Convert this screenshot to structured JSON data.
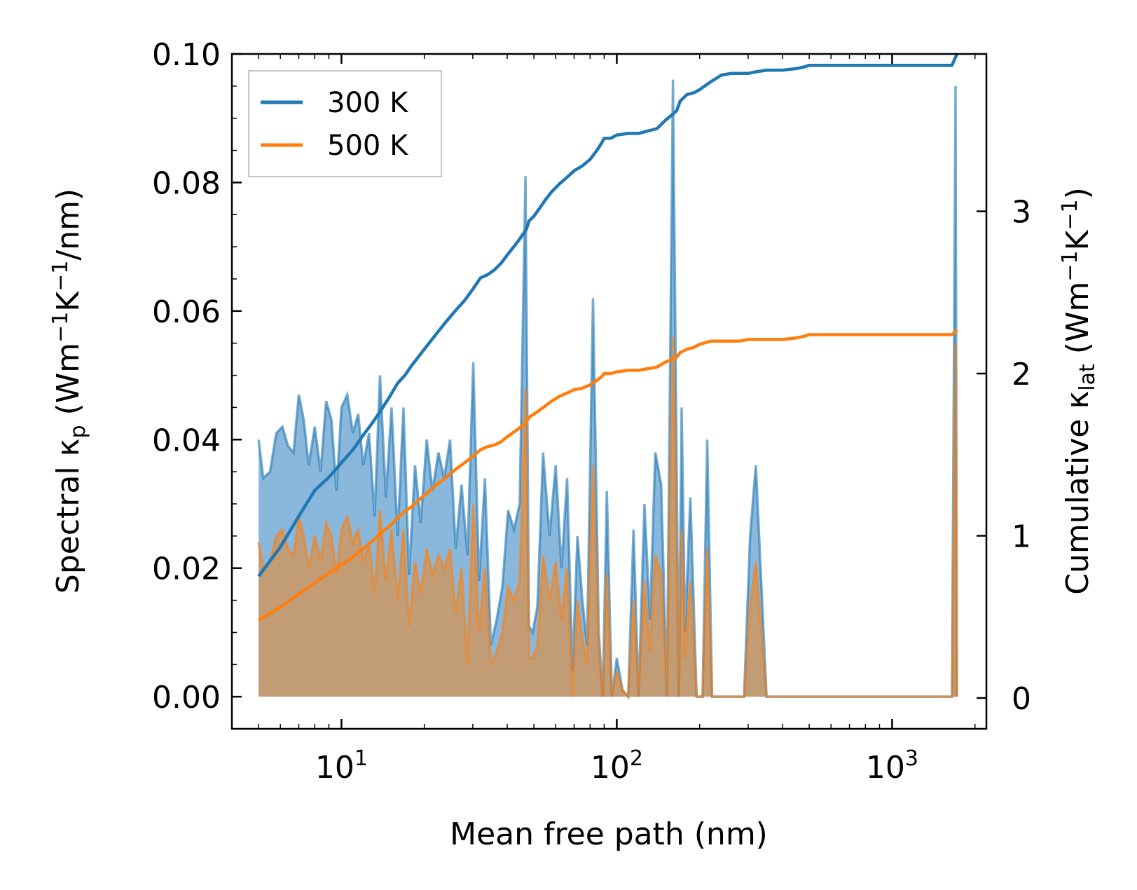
{
  "chart_data": {
    "type": "line",
    "xlabel": "Mean free path (nm)",
    "x_scale": "log",
    "xlim": [
      4.0,
      2200
    ],
    "x_tick_base": "10",
    "x_ticks": [
      {
        "value": 10,
        "exp": "1"
      },
      {
        "value": 100,
        "exp": "2"
      },
      {
        "value": 1000,
        "exp": "3"
      }
    ],
    "left_axis": {
      "label_prefix": "Spectral κ",
      "label_sub": "p",
      "label_unit_open": " (Wm",
      "label_sup1": "−1",
      "label_mid": "K",
      "label_sup2": "−1",
      "label_close": "/nm)",
      "ylim": [
        -0.005,
        0.1
      ],
      "ticks": [
        0.0,
        0.02,
        0.04,
        0.06,
        0.08,
        0.1
      ],
      "tick_labels": [
        "0.00",
        "0.02",
        "0.04",
        "0.06",
        "0.08",
        "0.10"
      ]
    },
    "right_axis": {
      "label_prefix": "Cumulative κ",
      "label_sub": "lat",
      "label_unit_open": " (Wm",
      "label_sup1": "−1",
      "label_mid": "K",
      "label_sup2": "−1",
      "label_close": ")",
      "ylim": [
        -0.19,
        3.97
      ],
      "ticks": [
        0,
        1,
        2,
        3
      ],
      "tick_labels": [
        "0",
        "1",
        "2",
        "3"
      ]
    },
    "legend": {
      "placement": "top-left",
      "entries": [
        "300 K",
        "500 K"
      ]
    },
    "series": [
      {
        "name": "300 K",
        "color": "#1f77b4",
        "fill_color": "#8ab8dc",
        "spectral_x": [
          5,
          5.2,
          5.5,
          5.8,
          6.1,
          6.4,
          6.7,
          7.0,
          7.3,
          7.6,
          8.0,
          8.4,
          8.8,
          9.2,
          9.6,
          10.0,
          10.5,
          11.0,
          11.5,
          12.0,
          12.6,
          13.2,
          13.8,
          14.5,
          15.2,
          16.0,
          16.8,
          17.6,
          18.5,
          19.4,
          20.4,
          21.4,
          22.5,
          23.6,
          24.8,
          26.0,
          27.3,
          28.7,
          30.1,
          31.6,
          33.2,
          34.9,
          36.6,
          38.4,
          40.3,
          42.3,
          44.4,
          46.6,
          48.0,
          49.5,
          51.5,
          54.0,
          57.0,
          60.0,
          63.0,
          66.0,
          69.0,
          72.0,
          75.0,
          78.0,
          82.0,
          86.0,
          89.0,
          92.0,
          96.0,
          100,
          105,
          110,
          115,
          120,
          126,
          132,
          138,
          145,
          152,
          160,
          168,
          172,
          177,
          185,
          195,
          205,
          213,
          222,
          235,
          260,
          290,
          305,
          320,
          350,
          400,
          440,
          460,
          480,
          500,
          600,
          800,
          1000,
          1300,
          1650,
          1700,
          1720
        ],
        "spectral_y": [
          0.04,
          0.034,
          0.035,
          0.041,
          0.042,
          0.039,
          0.038,
          0.047,
          0.043,
          0.036,
          0.042,
          0.035,
          0.046,
          0.043,
          0.032,
          0.045,
          0.047,
          0.041,
          0.044,
          0.036,
          0.041,
          0.028,
          0.05,
          0.031,
          0.045,
          0.025,
          0.045,
          0.019,
          0.036,
          0.027,
          0.04,
          0.032,
          0.038,
          0.034,
          0.04,
          0.023,
          0.033,
          0.022,
          0.052,
          0.018,
          0.034,
          0.008,
          0.012,
          0.017,
          0.029,
          0.026,
          0.03,
          0.081,
          0.011,
          0.01,
          0.014,
          0.038,
          0.025,
          0.036,
          0.02,
          0.034,
          0.004,
          0.025,
          0.015,
          0.008,
          0.062,
          0.01,
          0.0,
          0.032,
          0.0,
          0.006,
          0.001,
          0.0,
          0.026,
          0.0,
          0.03,
          0.012,
          0.038,
          0.033,
          0.0,
          0.096,
          0.0,
          0.045,
          0.01,
          0.031,
          0.0,
          0.0,
          0.04,
          0.0,
          0.0,
          0.0,
          0.0,
          0.025,
          0.036,
          0.0,
          0.0,
          0.0,
          0.0,
          0.0,
          0.0,
          0.0,
          0.0,
          0.0,
          0.0,
          0.0,
          0.095,
          0.0
        ],
        "cumulative_x": [
          5,
          6,
          7,
          8,
          9,
          10,
          11,
          12,
          13,
          14,
          15,
          16,
          17,
          18,
          20,
          22,
          24,
          26,
          28,
          30,
          32,
          34,
          36,
          38,
          40,
          44,
          47,
          48,
          50,
          52,
          55,
          58,
          62,
          66,
          70,
          75,
          80,
          85,
          88,
          90,
          95,
          100,
          110,
          120,
          140,
          150,
          160,
          165,
          170,
          175,
          180,
          190,
          200,
          220,
          240,
          260,
          280,
          300,
          320,
          350,
          400,
          450,
          480,
          500,
          600,
          800,
          1000,
          1300,
          1650,
          1700,
          1720
        ],
        "cumulative_y": [
          0.75,
          0.93,
          1.12,
          1.28,
          1.36,
          1.45,
          1.53,
          1.62,
          1.7,
          1.78,
          1.86,
          1.94,
          1.99,
          2.05,
          2.15,
          2.24,
          2.32,
          2.39,
          2.45,
          2.52,
          2.59,
          2.61,
          2.64,
          2.68,
          2.73,
          2.82,
          2.89,
          2.94,
          2.97,
          3.01,
          3.07,
          3.12,
          3.17,
          3.21,
          3.25,
          3.28,
          3.32,
          3.38,
          3.42,
          3.45,
          3.45,
          3.47,
          3.48,
          3.48,
          3.51,
          3.56,
          3.6,
          3.62,
          3.68,
          3.7,
          3.72,
          3.73,
          3.75,
          3.8,
          3.84,
          3.85,
          3.85,
          3.85,
          3.86,
          3.87,
          3.87,
          3.88,
          3.89,
          3.9,
          3.9,
          3.9,
          3.9,
          3.9,
          3.9,
          3.95,
          3.97
        ]
      },
      {
        "name": "500 K",
        "color": "#ff7f0e",
        "fill_color": "#c7996b",
        "spectral_x": [
          5,
          5.2,
          5.5,
          5.8,
          6.1,
          6.4,
          6.7,
          7.0,
          7.3,
          7.6,
          8.0,
          8.4,
          8.8,
          9.2,
          9.6,
          10.0,
          10.5,
          11.0,
          11.5,
          12.0,
          12.6,
          13.2,
          13.8,
          14.5,
          15.2,
          16.0,
          16.8,
          17.6,
          18.5,
          19.4,
          20.4,
          21.4,
          22.5,
          23.6,
          24.8,
          26.0,
          27.3,
          28.7,
          30.1,
          31.6,
          33.2,
          34.9,
          36.6,
          38.4,
          40.3,
          42.3,
          44.4,
          46.6,
          48.0,
          49.5,
          51.5,
          54.0,
          57.0,
          60.0,
          63.0,
          66.0,
          69.0,
          72.0,
          75.0,
          78.0,
          82.0,
          86.0,
          89.0,
          92.0,
          96.0,
          100,
          105,
          110,
          115,
          120,
          126,
          132,
          138,
          145,
          152,
          160,
          168,
          172,
          177,
          185,
          195,
          205,
          213,
          222,
          235,
          260,
          290,
          305,
          320,
          350,
          400,
          440,
          460,
          480,
          500,
          600,
          800,
          1000,
          1300,
          1650,
          1700,
          1720
        ],
        "spectral_y": [
          0.024,
          0.02,
          0.021,
          0.025,
          0.026,
          0.023,
          0.022,
          0.028,
          0.025,
          0.02,
          0.025,
          0.021,
          0.027,
          0.025,
          0.019,
          0.026,
          0.028,
          0.024,
          0.026,
          0.021,
          0.024,
          0.016,
          0.029,
          0.018,
          0.026,
          0.015,
          0.026,
          0.011,
          0.021,
          0.016,
          0.023,
          0.019,
          0.022,
          0.02,
          0.023,
          0.013,
          0.02,
          0.005,
          0.03,
          0.01,
          0.02,
          0.005,
          0.007,
          0.01,
          0.017,
          0.015,
          0.018,
          0.048,
          0.006,
          0.006,
          0.008,
          0.022,
          0.015,
          0.021,
          0.012,
          0.02,
          0.0,
          0.015,
          0.009,
          0.005,
          0.036,
          0.006,
          0.0,
          0.019,
          0.0,
          0.004,
          0.001,
          0.0,
          0.015,
          0.0,
          0.018,
          0.007,
          0.022,
          0.019,
          0.0,
          0.056,
          0.0,
          0.026,
          0.006,
          0.018,
          0.0,
          0.0,
          0.023,
          0.0,
          0.0,
          0.0,
          0.0,
          0.014,
          0.021,
          0.0,
          0.0,
          0.0,
          0.0,
          0.0,
          0.0,
          0.0,
          0.0,
          0.0,
          0.0,
          0.0,
          0.055,
          0.0
        ],
        "cumulative_x": [
          5,
          6,
          7,
          8,
          9,
          10,
          11,
          12,
          13,
          14,
          15,
          16,
          17,
          18,
          20,
          22,
          24,
          26,
          28,
          30,
          32,
          34,
          36,
          38,
          40,
          44,
          47,
          48,
          50,
          52,
          55,
          58,
          62,
          66,
          70,
          75,
          80,
          85,
          88,
          90,
          95,
          100,
          110,
          120,
          140,
          150,
          160,
          165,
          170,
          175,
          180,
          190,
          200,
          220,
          240,
          260,
          280,
          300,
          320,
          350,
          400,
          450,
          480,
          500,
          600,
          800,
          1000,
          1300,
          1650,
          1700,
          1720
        ],
        "cumulative_y": [
          0.48,
          0.56,
          0.64,
          0.71,
          0.77,
          0.82,
          0.87,
          0.92,
          0.97,
          1.02,
          1.06,
          1.11,
          1.15,
          1.18,
          1.25,
          1.31,
          1.36,
          1.41,
          1.45,
          1.49,
          1.53,
          1.55,
          1.56,
          1.58,
          1.61,
          1.66,
          1.7,
          1.73,
          1.75,
          1.77,
          1.8,
          1.83,
          1.86,
          1.88,
          1.9,
          1.91,
          1.93,
          1.96,
          1.98,
          2.0,
          2.0,
          2.01,
          2.02,
          2.02,
          2.04,
          2.07,
          2.09,
          2.1,
          2.13,
          2.14,
          2.15,
          2.16,
          2.18,
          2.2,
          2.2,
          2.2,
          2.2,
          2.21,
          2.21,
          2.21,
          2.21,
          2.22,
          2.23,
          2.24,
          2.24,
          2.24,
          2.24,
          2.24,
          2.24,
          2.26,
          2.27
        ]
      }
    ]
  }
}
